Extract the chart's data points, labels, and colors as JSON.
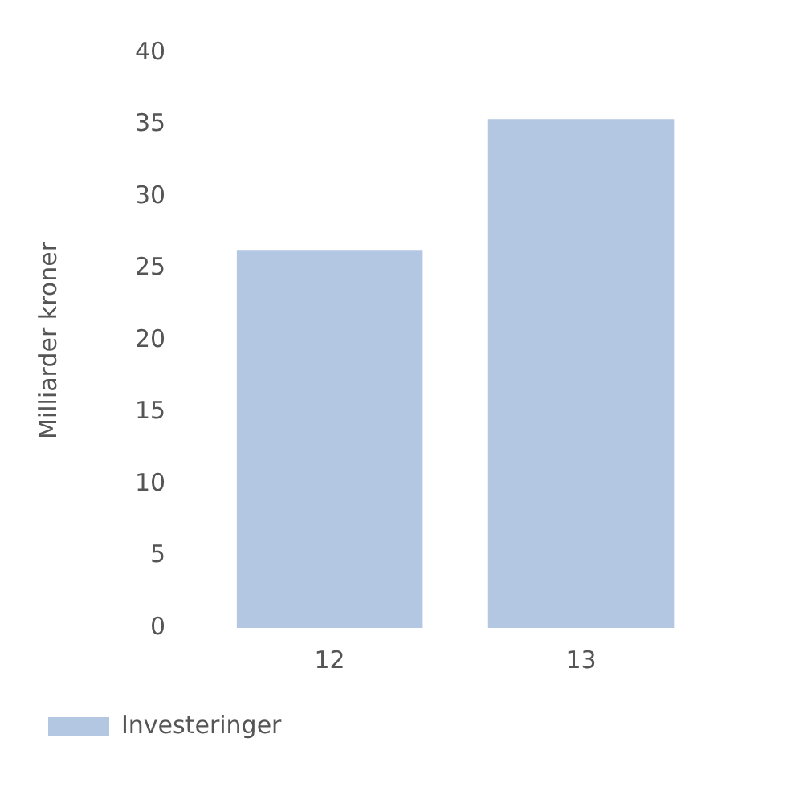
{
  "chart_data": {
    "type": "bar",
    "ylabel": "Milliarder kroner",
    "categories": [
      "12",
      "13"
    ],
    "series": [
      {
        "name": "Investeringer",
        "color": "#b3c6e2",
        "values": [
          26.3,
          35.4
        ]
      }
    ],
    "ylim": [
      0,
      40
    ],
    "yticks": [
      0,
      5,
      10,
      15,
      20,
      25,
      30,
      35,
      40
    ],
    "grid": false,
    "legend": "bottom left"
  }
}
